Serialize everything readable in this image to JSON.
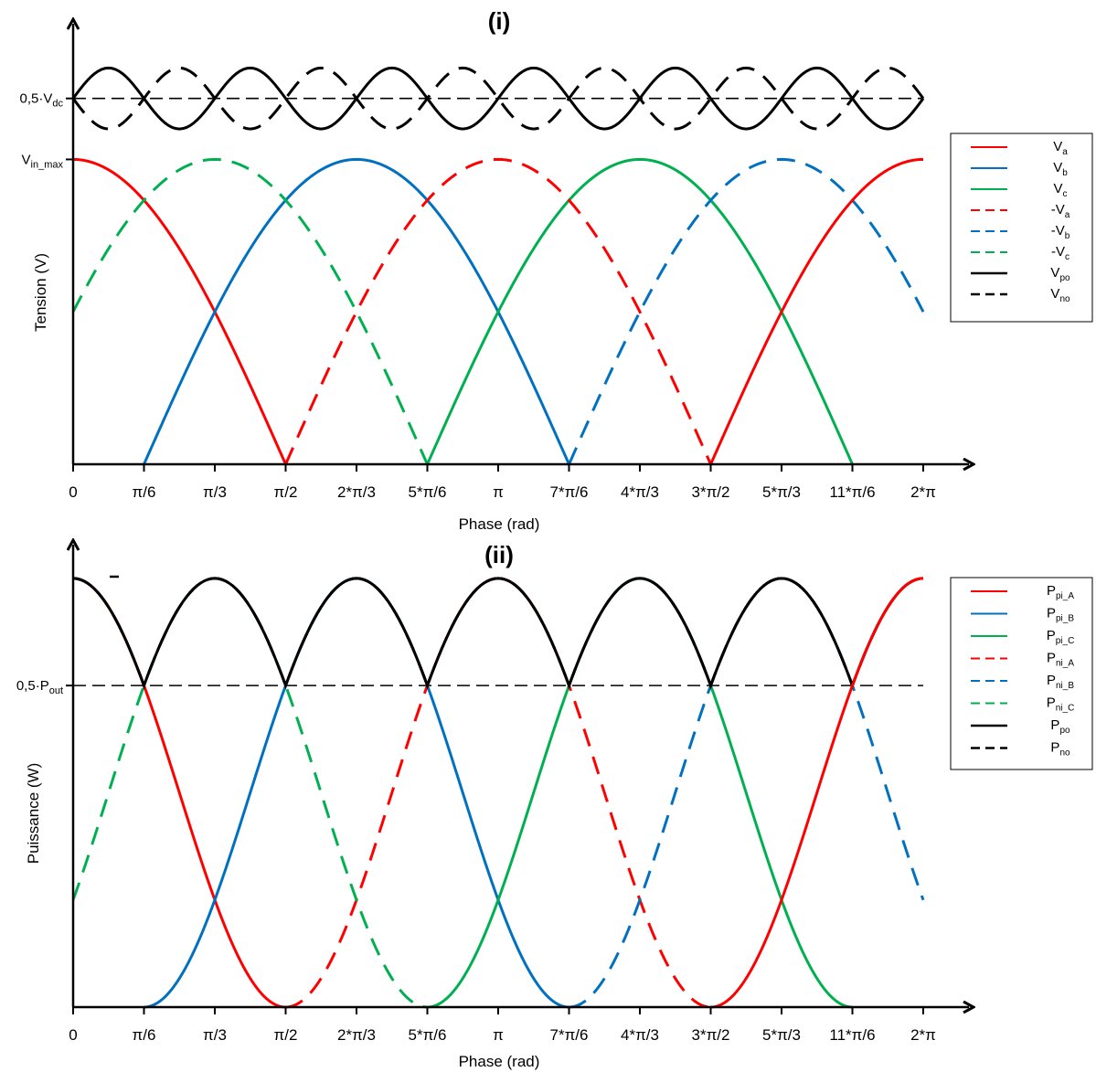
{
  "figure": {
    "colors": {
      "a": "#ff0000",
      "b": "#0070c0",
      "c": "#00b050",
      "o": "#000000"
    }
  },
  "chart_data": [
    {
      "type": "line",
      "title": "(i)",
      "xlabel": "Phase (rad)",
      "ylabel": "Tension (V)",
      "xlim": [
        0,
        6.2832
      ],
      "ylim": [
        0,
        1.4
      ],
      "xticks": [
        "0",
        "π/6",
        "π/3",
        "π/2",
        "2*π/3",
        "5*π/6",
        "π",
        "7*π/6",
        "4*π/3",
        "3*π/2",
        "5*π/3",
        "11*π/6",
        "2*π"
      ],
      "yticks": [
        {
          "prefix": "V",
          "sub": "in_max",
          "value": 1.0
        },
        {
          "prefix": "0,5·V",
          "sub": "dc",
          "value": 1.2
        }
      ],
      "legend_position": "right",
      "series": [
        {
          "name": "V",
          "sub": "a",
          "color": "a",
          "style": "solid",
          "formula": "|cos(x)|",
          "domain": [
            0,
            1.5708
          ]
        },
        {
          "name": "V",
          "sub": "b",
          "color": "b",
          "style": "solid",
          "formula": "|cos(x - 2π/3)|",
          "domain": [
            0.5236,
            3.6652
          ]
        },
        {
          "name": "V",
          "sub": "c",
          "color": "c",
          "style": "solid",
          "formula": "|cos(x + 2π/3)|",
          "domain": [
            2.618,
            5.7596
          ]
        },
        {
          "name": "-V",
          "sub": "a",
          "color": "a",
          "style": "dashed",
          "formula": "|cos(x)|",
          "domain": [
            1.5708,
            4.7124
          ]
        },
        {
          "name": "-V",
          "sub": "b",
          "color": "b",
          "style": "dashed",
          "formula": "|cos(x - 2π/3)|",
          "domain": [
            3.6652,
            6.2832
          ]
        },
        {
          "name": "-V",
          "sub": "c",
          "color": "c",
          "style": "dashed",
          "formula": "|cos(x + 2π/3)|",
          "domain": [
            0,
            2.618
          ]
        },
        {
          "name": "V",
          "sub": "po",
          "color": "o",
          "style": "solid",
          "formula": "1.2 + 0.1·sin(6x)"
        },
        {
          "name": "V",
          "sub": "no",
          "color": "o",
          "style": "dashed",
          "formula": "1.2 − 0.1·sin(6x)"
        }
      ],
      "extra": [
        {
          "color": "a",
          "style": "solid",
          "formula": "|cos(x)|",
          "domain": [
            4.7124,
            6.2832
          ]
        },
        {
          "color": "o",
          "style": "dashed",
          "formula": "1.2 (reference)"
        }
      ]
    },
    {
      "type": "line",
      "title": "(ii)",
      "xlabel": "Phase (rad)",
      "ylabel": "Puissance (W)",
      "xlim": [
        0,
        6.2832
      ],
      "ylim": [
        0,
        1.2
      ],
      "xticks": [
        "0",
        "π/6",
        "π/3",
        "π/2",
        "2*π/3",
        "5*π/6",
        "π",
        "7*π/6",
        "4*π/3",
        "3*π/2",
        "5*π/3",
        "11*π/6",
        "2*π"
      ],
      "yticks": [
        {
          "prefix": "0,5·P",
          "sub": "out",
          "value": 0.75
        }
      ],
      "legend_position": "right",
      "series": [
        {
          "name": "P",
          "sub": "pi_A",
          "color": "a",
          "style": "solid",
          "formula": "cos²(x)",
          "domain": [
            0,
            1.5708
          ]
        },
        {
          "name": "P",
          "sub": "pi_B",
          "color": "b",
          "style": "solid",
          "formula": "cos²(x - 2π/3)",
          "domain": [
            0.5236,
            3.6652
          ]
        },
        {
          "name": "P",
          "sub": "pi_C",
          "color": "c",
          "style": "solid",
          "formula": "cos²(x + 2π/3)",
          "domain": [
            2.618,
            5.7596
          ]
        },
        {
          "name": "P",
          "sub": "ni_A",
          "color": "a",
          "style": "dashed",
          "formula": "cos²(x)",
          "domain": [
            1.5708,
            4.7124
          ]
        },
        {
          "name": "P",
          "sub": "ni_B",
          "color": "b",
          "style": "dashed",
          "formula": "cos²(x - 2π/3)",
          "domain": [
            3.6652,
            6.2832
          ]
        },
        {
          "name": "P",
          "sub": "ni_C",
          "color": "c",
          "style": "dashed",
          "formula": "cos²(x + 2π/3)",
          "domain": [
            0,
            2.618
          ]
        },
        {
          "name": "P",
          "sub": "po",
          "color": "o",
          "style": "solid",
          "formula": "max of Ppi"
        },
        {
          "name": "P",
          "sub": "no",
          "color": "o",
          "style": "dashed",
          "formula": "max of Pni"
        }
      ],
      "extra": [
        {
          "color": "a",
          "style": "solid",
          "formula": "cos²(x)",
          "domain": [
            4.7124,
            6.2832
          ]
        },
        {
          "color": "o",
          "style": "dashed",
          "formula": "0.75 (reference)"
        }
      ]
    }
  ]
}
